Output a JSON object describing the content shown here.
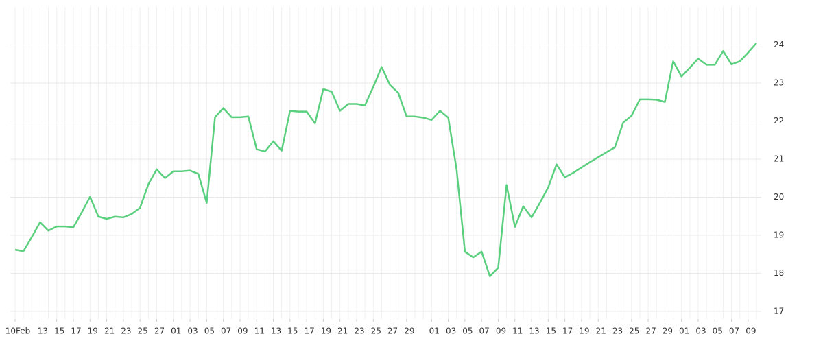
{
  "chart_data": {
    "type": "line",
    "categories": [
      "10Feb",
      null,
      null,
      "13",
      null,
      "15",
      null,
      "17",
      null,
      "19",
      null,
      "21",
      null,
      "23",
      null,
      "25",
      null,
      "27",
      null,
      "01",
      null,
      "03",
      null,
      "05",
      null,
      "07",
      null,
      "09",
      null,
      "11",
      null,
      "13",
      null,
      "15",
      null,
      "17",
      null,
      "19",
      null,
      "21",
      null,
      "23",
      null,
      "25",
      null,
      "27",
      null,
      "29",
      null,
      null,
      "01",
      null,
      "03",
      null,
      "05",
      null,
      "07",
      null,
      "09",
      null,
      "11",
      null,
      "13",
      null,
      "15",
      null,
      "17",
      null,
      "19",
      null,
      "21",
      null,
      "23",
      null,
      "25",
      null,
      "27",
      null,
      "29",
      null,
      "01",
      null,
      "03",
      null,
      "05",
      null,
      "07",
      null,
      "09",
      null
    ],
    "series": [
      {
        "color": "#5ad07f",
        "values": [
          18.62,
          18.58,
          18.95,
          19.34,
          19.12,
          19.23,
          19.23,
          19.21,
          19.6,
          20.01,
          19.49,
          19.43,
          19.49,
          19.47,
          19.56,
          19.72,
          20.34,
          20.73,
          20.5,
          20.68,
          20.68,
          20.7,
          20.61,
          19.85,
          22.1,
          22.34,
          22.1,
          22.1,
          22.12,
          21.26,
          21.2,
          21.47,
          21.22,
          22.27,
          22.25,
          22.25,
          21.94,
          22.84,
          22.77,
          22.27,
          22.45,
          22.45,
          22.41,
          22.9,
          23.42,
          22.95,
          22.74,
          22.12,
          22.12,
          22.09,
          22.03,
          22.27,
          22.09,
          20.73,
          18.57,
          18.42,
          18.57,
          17.92,
          18.15,
          20.32,
          19.22,
          19.76,
          19.47,
          19.85,
          20.26,
          20.86,
          20.52,
          20.64,
          20.78,
          20.92,
          21.05,
          21.18,
          21.31,
          21.96,
          22.14,
          22.57,
          22.57,
          22.56,
          22.5,
          23.57,
          23.17,
          23.4,
          23.64,
          23.48,
          23.48,
          23.84,
          23.49,
          23.57,
          23.8,
          24.05
        ]
      }
    ],
    "ylim": [
      16.8,
      25
    ],
    "yticks": [
      17,
      18,
      19,
      20,
      21,
      22,
      23,
      24
    ],
    "grid": true
  }
}
